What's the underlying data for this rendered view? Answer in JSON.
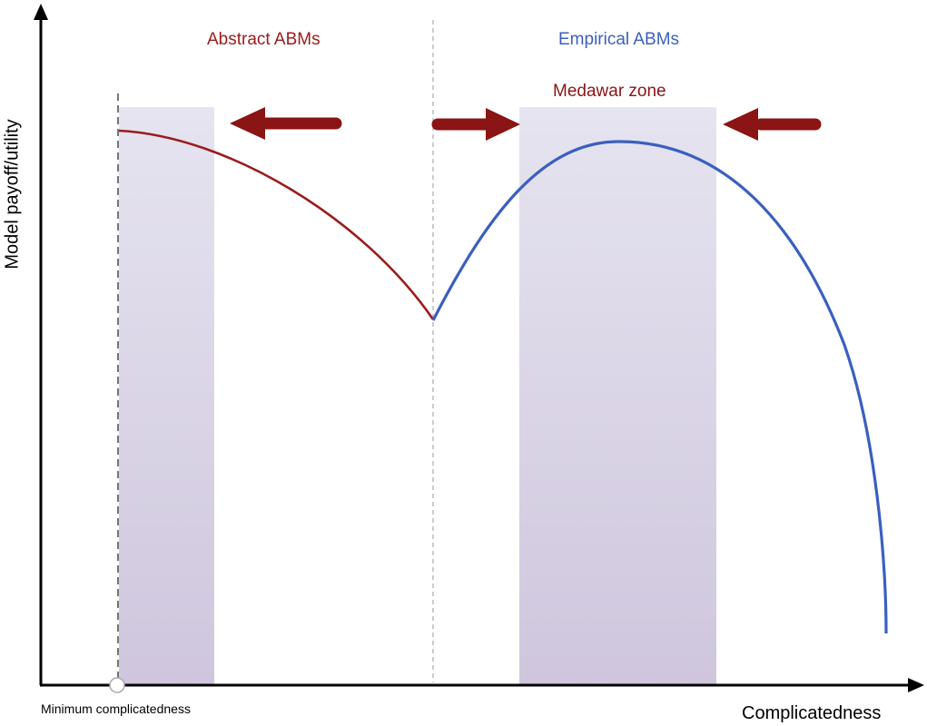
{
  "colors": {
    "abstract": "#9b1b1b",
    "empirical": "#3a5fbf",
    "arrow": "#8b1414",
    "band_top": "#e6e4f0",
    "band_bottom": "#cfc6dd",
    "axis": "#000000",
    "divider": "#bbbbbb"
  },
  "labels": {
    "abstract": "Abstract ABMs",
    "empirical": "Empirical ABMs",
    "medawar": "Medawar zone",
    "y_axis": "Model payoff/utility",
    "x_axis": "Complicatedness",
    "min_marker": "Minimum complicatedness"
  }
}
